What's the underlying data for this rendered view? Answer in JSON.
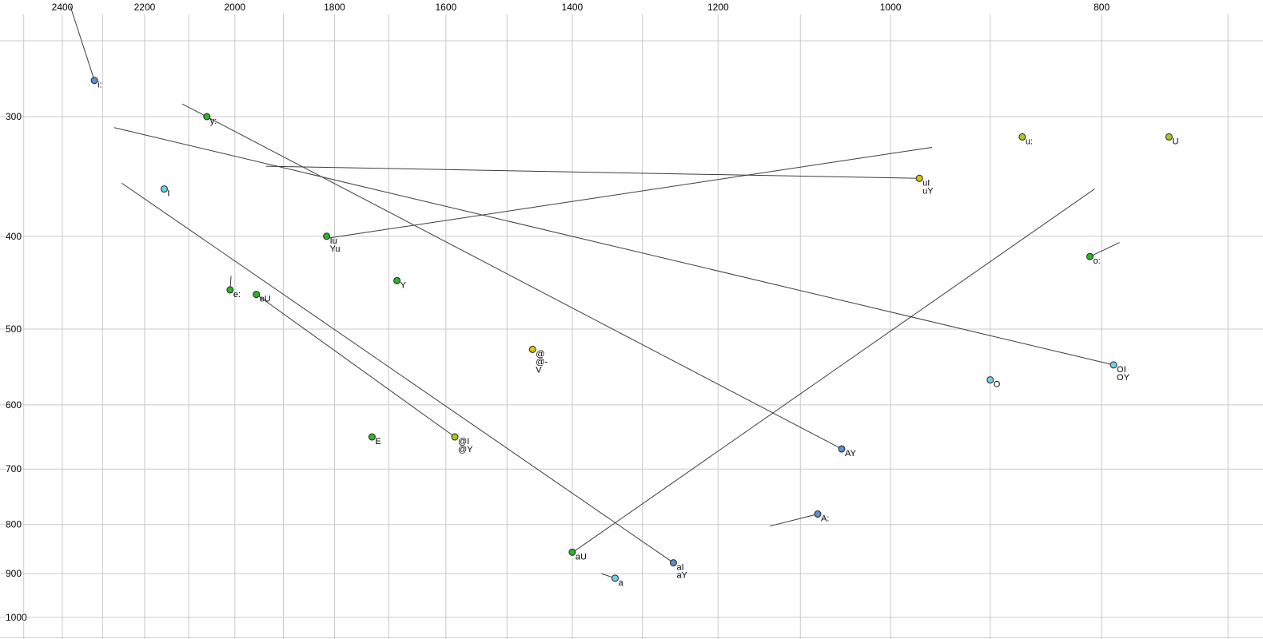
{
  "chart_data": {
    "type": "scatter",
    "title": "",
    "xlabel": "",
    "ylabel": "",
    "description": "Vowel formant scatter plot: F2 on reversed logarithmic top axis, F1 on logarithmic left axis, with monophthong onglide tails and long diphthong trajectory lines.",
    "x_axis": {
      "scale": "log",
      "reversed": true,
      "tick_labels": [
        "2400",
        "2200",
        "2000",
        "1800",
        "1600",
        "1400",
        "1200",
        "1000",
        "800"
      ],
      "tick_values": [
        2400,
        2200,
        2000,
        1800,
        1600,
        1400,
        1200,
        1000,
        800
      ],
      "grid_values": [
        2500,
        2400,
        2300,
        2200,
        2100,
        2000,
        1900,
        1800,
        1700,
        1600,
        1500,
        1400,
        1300,
        1200,
        1100,
        1000,
        900,
        800,
        700
      ],
      "range": [
        2566,
        636
      ]
    },
    "y_axis": {
      "scale": "log",
      "tick_labels": [
        "300",
        "400",
        "500",
        "600",
        "700",
        "800",
        "900",
        "1000"
      ],
      "tick_values": [
        300,
        400,
        500,
        600,
        700,
        800,
        900,
        1000
      ],
      "grid_values": [
        250,
        300,
        400,
        500,
        600,
        700,
        800,
        900,
        1000,
        1050
      ],
      "range": [
        234,
        1052
      ]
    },
    "legend": "none",
    "grid": true,
    "colors": {
      "background": "#ffffff",
      "grid": "#c9c9c9",
      "line": "#3c3c3c",
      "dot_outline": "#222222",
      "label_text": "#000000"
    },
    "points": [
      {
        "labels": [
          "i:"
        ],
        "f2": 2320,
        "f1": 275,
        "color": "#5b8fd0"
      },
      {
        "labels": [
          "y:"
        ],
        "f2": 2060,
        "f1": 300,
        "color": "#2fb22f"
      },
      {
        "labels": [
          "I"
        ],
        "f2": 2155,
        "f1": 357,
        "color": "#6fd0e8"
      },
      {
        "labels": [
          "e:"
        ],
        "f2": 2010,
        "f1": 455,
        "color": "#2fb22f"
      },
      {
        "labels": [
          "eU"
        ],
        "f2": 1955,
        "f1": 460,
        "color": "#2fb22f"
      },
      {
        "labels": [
          "Iu",
          "Yu"
        ],
        "f2": 1815,
        "f1": 400,
        "color": "#2fb22f"
      },
      {
        "labels": [
          "Y"
        ],
        "f2": 1685,
        "f1": 445,
        "color": "#2fb22f"
      },
      {
        "labels": [
          "E"
        ],
        "f2": 1730,
        "f1": 648,
        "color": "#2fb22f"
      },
      {
        "labels": [
          "@I",
          "@Y"
        ],
        "f2": 1585,
        "f1": 648,
        "color": "#a8c820"
      },
      {
        "labels": [
          "@",
          "@-",
          "V"
        ],
        "f2": 1460,
        "f1": 525,
        "color": "#d8c800"
      },
      {
        "labels": [
          "aU"
        ],
        "f2": 1400,
        "f1": 855,
        "color": "#2fb22f"
      },
      {
        "labels": [
          "a"
        ],
        "f2": 1338,
        "f1": 910,
        "color": "#6fd0e8"
      },
      {
        "labels": [
          "aI",
          "aY"
        ],
        "f2": 1258,
        "f1": 877,
        "color": "#5b8fd0"
      },
      {
        "labels": [
          "AY"
        ],
        "f2": 1053,
        "f1": 667,
        "color": "#5b8fd0"
      },
      {
        "labels": [
          "A:"
        ],
        "f2": 1080,
        "f1": 780,
        "color": "#5b8fd0"
      },
      {
        "labels": [
          "uI",
          "uY"
        ],
        "f2": 970,
        "f1": 348,
        "color": "#d8c800"
      },
      {
        "labels": [
          "O"
        ],
        "f2": 900,
        "f1": 565,
        "color": "#6fd0e8"
      },
      {
        "labels": [
          "OI",
          "OY"
        ],
        "f2": 790,
        "f1": 545,
        "color": "#6fd0e8"
      },
      {
        "labels": [
          "o:"
        ],
        "f2": 810,
        "f1": 420,
        "color": "#2fb22f"
      },
      {
        "labels": [
          "u:"
        ],
        "f2": 870,
        "f1": 315,
        "color": "#a8c820"
      },
      {
        "labels": [
          "U"
        ],
        "f2": 745,
        "f1": 315,
        "color": "#a8c820"
      }
    ],
    "segments": [
      {
        "name": "i:-onglide",
        "from": [
          2380,
          230
        ],
        "to": [
          2320,
          275
        ]
      },
      {
        "name": "e:-onglide",
        "from": [
          2008,
          440
        ],
        "to": [
          2010,
          455
        ]
      },
      {
        "name": "a-onglide",
        "from": [
          1358,
          900
        ],
        "to": [
          1338,
          910
        ]
      },
      {
        "name": "A:-onglide",
        "from": [
          1136,
          803
        ],
        "to": [
          1080,
          780
        ]
      },
      {
        "name": "o:-onglide",
        "from": [
          785,
          406
        ],
        "to": [
          810,
          420
        ]
      },
      {
        "name": "AY-trajectory",
        "from": [
          1053,
          667
        ],
        "to": [
          2114,
          291
        ]
      },
      {
        "name": "OI-trajectory",
        "from": [
          790,
          545
        ],
        "to": [
          2272,
          308
        ]
      },
      {
        "name": "uI-trajectory",
        "from": [
          970,
          348
        ],
        "to": [
          1935,
          338
        ]
      },
      {
        "name": "Iu-trajectory",
        "from": [
          1815,
          402
        ],
        "to": [
          957,
          323
        ]
      },
      {
        "name": "@I-trajectory",
        "from": [
          1585,
          648
        ],
        "to": [
          1955,
          460
        ]
      },
      {
        "name": "aI-trajectory",
        "from": [
          1258,
          877
        ],
        "to": [
          2254,
          352
        ]
      },
      {
        "name": "aU-trajectory",
        "from": [
          1400,
          856
        ],
        "to": [
          806,
          357
        ]
      }
    ]
  }
}
